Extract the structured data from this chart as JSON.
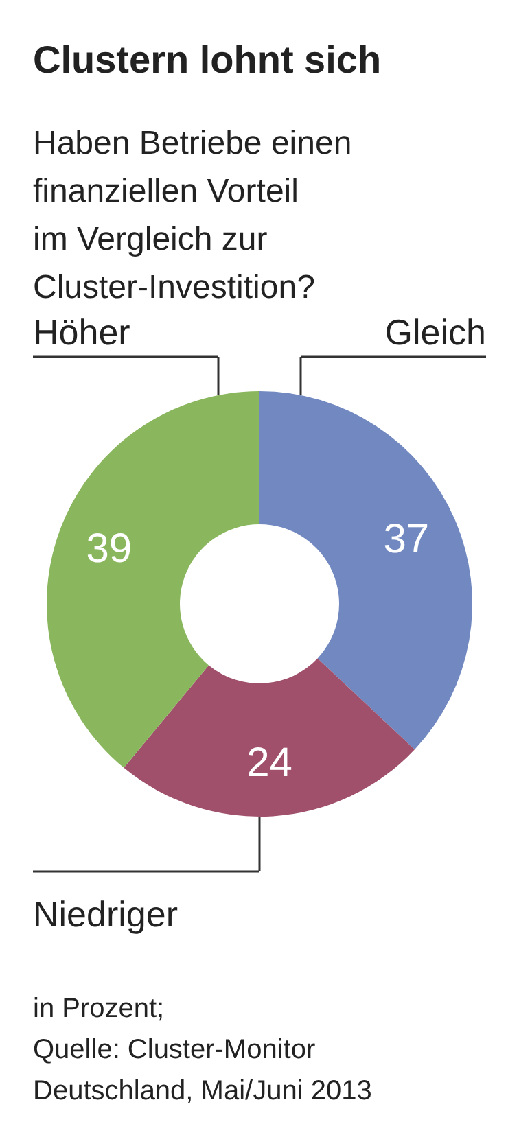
{
  "chart_data": {
    "type": "donut",
    "title": "Clustern lohnt sich",
    "subtitle": "Haben Betriebe einen finanziellen Vorteil im Vergleich zur Cluster-Investition?",
    "categories": [
      "Gleich",
      "Niedriger",
      "Höher"
    ],
    "values": [
      37,
      24,
      39
    ],
    "colors": [
      "#7189c0",
      "#a0506a",
      "#8ab75d"
    ],
    "data_labels": true,
    "annotations": [
      "in Prozent;",
      "Quelle: Cluster-Monitor Deutschland, Mai/Juni 2013"
    ]
  }
}
